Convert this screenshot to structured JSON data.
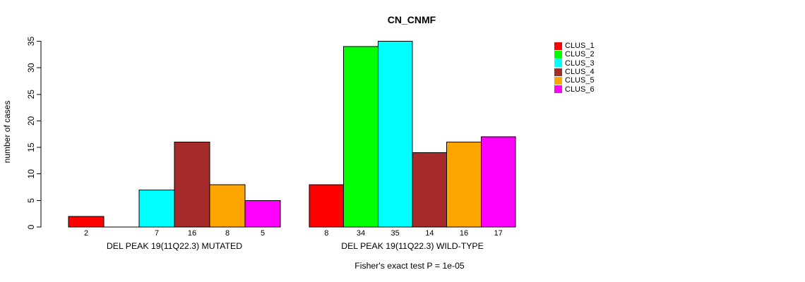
{
  "chart_data": {
    "type": "bar",
    "title": "CN_CNMF",
    "ylabel": "number of cases",
    "ylim": [
      0,
      35
    ],
    "yticks": [
      0,
      5,
      10,
      15,
      20,
      25,
      30,
      35
    ],
    "grid": false,
    "legend_position": "right",
    "legend": [
      {
        "label": "CLUS_1",
        "color": "#ff0000"
      },
      {
        "label": "CLUS_2",
        "color": "#00ff00"
      },
      {
        "label": "CLUS_3",
        "color": "#00ffff"
      },
      {
        "label": "CLUS_4",
        "color": "#a52a2a"
      },
      {
        "label": "CLUS_5",
        "color": "#ffa500"
      },
      {
        "label": "CLUS_6",
        "color": "#ff00ff"
      }
    ],
    "groups": [
      {
        "label": "DEL PEAK 19(11Q22.3) MUTATED",
        "values": [
          2,
          0,
          7,
          16,
          8,
          5
        ],
        "bar_labels": [
          "2",
          "",
          "7",
          "16",
          "8",
          "5"
        ]
      },
      {
        "label": "DEL PEAK 19(11Q22.3) WILD-TYPE",
        "values": [
          8,
          34,
          35,
          14,
          16,
          17
        ],
        "bar_labels": [
          "8",
          "34",
          "35",
          "14",
          "16",
          "17"
        ]
      }
    ],
    "annotation": "Fisher's exact test P = 1e-05"
  }
}
